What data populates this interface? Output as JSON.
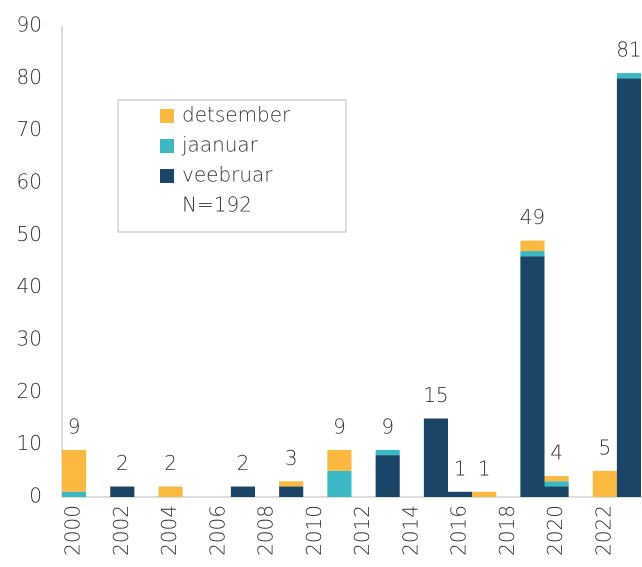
{
  "chart_data": {
    "type": "stacked_bar",
    "categories": [
      "2000",
      null,
      "2002",
      null,
      "2004",
      null,
      "2006",
      null,
      "2008",
      null,
      "2010",
      null,
      "2012",
      null,
      "2014",
      null,
      "2016",
      null,
      "2018",
      null,
      "2020",
      null,
      "2022",
      null
    ],
    "series": [
      {
        "name": "detsember",
        "color": "#fbb93f",
        "values": [
          8,
          0,
          0,
          0,
          2,
          0,
          0,
          0,
          0,
          1,
          0,
          4,
          0,
          0,
          0,
          0,
          0,
          1,
          0,
          2,
          1,
          0,
          5,
          0
        ]
      },
      {
        "name": "jaanuar",
        "color": "#3cb8c4",
        "values": [
          1,
          0,
          0,
          0,
          0,
          0,
          0,
          0,
          0,
          0,
          0,
          5,
          0,
          1,
          0,
          0,
          0,
          0,
          0,
          1,
          1,
          0,
          0,
          1
        ]
      },
      {
        "name": "veebruar",
        "color": "#1a4567",
        "values": [
          0,
          0,
          2,
          0,
          0,
          0,
          0,
          2,
          0,
          2,
          0,
          0,
          0,
          8,
          0,
          15,
          1,
          0,
          0,
          46,
          2,
          0,
          0,
          80
        ]
      }
    ],
    "totals": [
      9,
      null,
      2,
      null,
      2,
      null,
      null,
      2,
      null,
      3,
      null,
      9,
      null,
      9,
      null,
      15,
      1,
      1,
      null,
      49,
      4,
      null,
      5,
      81
    ],
    "legend_note": "N=192",
    "ylim": [
      0,
      90
    ],
    "yticks": [
      0,
      10,
      20,
      30,
      40,
      50,
      60,
      70,
      80,
      90
    ],
    "grid": false
  }
}
